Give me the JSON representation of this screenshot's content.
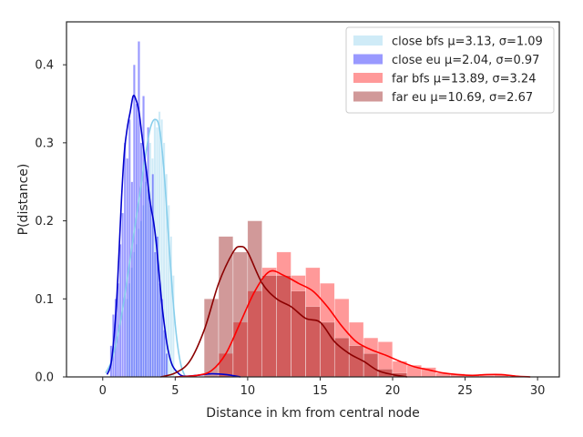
{
  "chart_data": {
    "type": "histogram-kde",
    "title": "",
    "xlabel": "Distance in km from central node",
    "ylabel": "P(distance)",
    "xlim": [
      -2.5,
      31.5
    ],
    "ylim": [
      0,
      0.455
    ],
    "xticks": [
      "0",
      "5",
      "10",
      "15",
      "20",
      "25",
      "30"
    ],
    "xtick_values": [
      0,
      5,
      10,
      15,
      20,
      25,
      30
    ],
    "yticks": [
      "0.0",
      "0.1",
      "0.2",
      "0.3",
      "0.4"
    ],
    "ytick_values": [
      0,
      0.1,
      0.2,
      0.3,
      0.4
    ],
    "grid": false,
    "legend_position": "top-right",
    "series": [
      {
        "name": "close bfs μ=3.13, σ=1.09",
        "bar_color": "#87ceeb",
        "bar_alpha": 0.4,
        "line_color": "#87ceeb",
        "bin_width": 0.16,
        "bins": [
          [
            1.6,
            0.1
          ],
          [
            1.76,
            0.12
          ],
          [
            1.92,
            0.14
          ],
          [
            2.08,
            0.16
          ],
          [
            2.24,
            0.17
          ],
          [
            2.4,
            0.19
          ],
          [
            2.56,
            0.2
          ],
          [
            2.72,
            0.22
          ],
          [
            2.88,
            0.25
          ],
          [
            3.04,
            0.24
          ],
          [
            3.2,
            0.3
          ],
          [
            3.36,
            0.28
          ],
          [
            3.52,
            0.33
          ],
          [
            3.68,
            0.32
          ],
          [
            3.84,
            0.34
          ],
          [
            4.0,
            0.33
          ],
          [
            4.16,
            0.3
          ],
          [
            4.32,
            0.26
          ],
          [
            4.48,
            0.22
          ],
          [
            4.64,
            0.18
          ],
          [
            4.8,
            0.13
          ]
        ],
        "kde": [
          [
            0.2,
            0.005
          ],
          [
            0.6,
            0.02
          ],
          [
            1.0,
            0.05
          ],
          [
            1.4,
            0.09
          ],
          [
            1.8,
            0.14
          ],
          [
            2.2,
            0.19
          ],
          [
            2.6,
            0.24
          ],
          [
            3.0,
            0.29
          ],
          [
            3.3,
            0.32
          ],
          [
            3.6,
            0.33
          ],
          [
            3.9,
            0.32
          ],
          [
            4.2,
            0.27
          ],
          [
            4.5,
            0.19
          ],
          [
            4.8,
            0.11
          ],
          [
            5.1,
            0.05
          ],
          [
            5.4,
            0.015
          ],
          [
            5.7,
            0.0
          ]
        ]
      },
      {
        "name": "close eu μ=2.04, σ=0.97",
        "bar_color": "#0000ff",
        "bar_alpha": 0.4,
        "line_color": "#0000cd",
        "bin_width": 0.16,
        "bins": [
          [
            0.5,
            0.04
          ],
          [
            0.66,
            0.08
          ],
          [
            0.82,
            0.1
          ],
          [
            0.98,
            0.12
          ],
          [
            1.14,
            0.17
          ],
          [
            1.3,
            0.21
          ],
          [
            1.46,
            0.3
          ],
          [
            1.62,
            0.28
          ],
          [
            1.78,
            0.33
          ],
          [
            1.94,
            0.25
          ],
          [
            2.1,
            0.4
          ],
          [
            2.26,
            0.35
          ],
          [
            2.42,
            0.43
          ],
          [
            2.58,
            0.3
          ],
          [
            2.74,
            0.36
          ],
          [
            2.9,
            0.27
          ],
          [
            3.06,
            0.32
          ],
          [
            3.22,
            0.22
          ],
          [
            3.38,
            0.26
          ],
          [
            3.54,
            0.16
          ],
          [
            3.7,
            0.18
          ],
          [
            3.86,
            0.12
          ],
          [
            4.02,
            0.1
          ],
          [
            4.18,
            0.06
          ],
          [
            4.34,
            0.03
          ]
        ],
        "kde": [
          [
            0.3,
            0.003
          ],
          [
            0.6,
            0.02
          ],
          [
            0.9,
            0.08
          ],
          [
            1.1,
            0.15
          ],
          [
            1.3,
            0.23
          ],
          [
            1.5,
            0.29
          ],
          [
            1.7,
            0.32
          ],
          [
            1.9,
            0.34
          ],
          [
            2.1,
            0.36
          ],
          [
            2.3,
            0.355
          ],
          [
            2.5,
            0.34
          ],
          [
            2.7,
            0.31
          ],
          [
            2.9,
            0.28
          ],
          [
            3.1,
            0.25
          ],
          [
            3.3,
            0.22
          ],
          [
            3.5,
            0.2
          ],
          [
            3.7,
            0.17
          ],
          [
            3.9,
            0.13
          ],
          [
            4.1,
            0.09
          ],
          [
            4.3,
            0.06
          ],
          [
            4.5,
            0.035
          ],
          [
            4.8,
            0.015
          ],
          [
            5.2,
            0.005
          ],
          [
            5.6,
            0.001
          ],
          [
            6.5,
            0.002
          ],
          [
            7.5,
            0.004
          ],
          [
            8.5,
            0.003
          ],
          [
            9.5,
            0.0
          ]
        ]
      },
      {
        "name": "far bfs μ=13.89, σ=3.24",
        "bar_color": "#ff0000",
        "bar_alpha": 0.4,
        "line_color": "#ff0000",
        "bin_width": 1.0,
        "bins": [
          [
            8,
            0.03
          ],
          [
            9,
            0.07
          ],
          [
            10,
            0.11
          ],
          [
            11,
            0.14
          ],
          [
            12,
            0.16
          ],
          [
            13,
            0.13
          ],
          [
            14,
            0.14
          ],
          [
            15,
            0.12
          ],
          [
            16,
            0.1
          ],
          [
            17,
            0.07
          ],
          [
            18,
            0.05
          ],
          [
            19,
            0.045
          ],
          [
            20,
            0.02
          ],
          [
            21,
            0.015
          ],
          [
            22,
            0.012
          ],
          [
            23,
            0.005
          ],
          [
            24,
            0.004
          ],
          [
            25,
            0.002
          ],
          [
            26,
            0.002
          ],
          [
            27,
            0.003
          ]
        ],
        "kde": [
          [
            5.0,
            0.0
          ],
          [
            6.5,
            0.002
          ],
          [
            7.5,
            0.008
          ],
          [
            8.5,
            0.03
          ],
          [
            9.5,
            0.07
          ],
          [
            10.5,
            0.11
          ],
          [
            11.5,
            0.135
          ],
          [
            12.5,
            0.13
          ],
          [
            13.5,
            0.12
          ],
          [
            14.5,
            0.11
          ],
          [
            15.5,
            0.09
          ],
          [
            16.5,
            0.065
          ],
          [
            17.5,
            0.045
          ],
          [
            18.5,
            0.035
          ],
          [
            19.5,
            0.028
          ],
          [
            20.5,
            0.02
          ],
          [
            21.5,
            0.013
          ],
          [
            22.5,
            0.009
          ],
          [
            23.5,
            0.005
          ],
          [
            24.5,
            0.003
          ],
          [
            25.5,
            0.002
          ],
          [
            26.5,
            0.003
          ],
          [
            27.5,
            0.003
          ],
          [
            28.5,
            0.001
          ],
          [
            29.5,
            0.0
          ]
        ]
      },
      {
        "name": "far eu μ=10.69, σ=2.67",
        "bar_color": "#8b0000",
        "bar_alpha": 0.4,
        "line_color": "#8b0000",
        "bin_width": 1.0,
        "bins": [
          [
            7,
            0.1
          ],
          [
            8,
            0.18
          ],
          [
            9,
            0.16
          ],
          [
            10,
            0.2
          ],
          [
            11,
            0.13
          ],
          [
            12,
            0.13
          ],
          [
            13,
            0.11
          ],
          [
            14,
            0.09
          ],
          [
            15,
            0.07
          ],
          [
            16,
            0.05
          ],
          [
            17,
            0.04
          ],
          [
            18,
            0.03
          ],
          [
            19,
            0.01
          ],
          [
            20,
            0.005
          ]
        ],
        "kde": [
          [
            4.0,
            0.0
          ],
          [
            5.0,
            0.005
          ],
          [
            6.0,
            0.02
          ],
          [
            7.0,
            0.06
          ],
          [
            8.0,
            0.12
          ],
          [
            9.0,
            0.16
          ],
          [
            9.5,
            0.167
          ],
          [
            10.0,
            0.16
          ],
          [
            11.0,
            0.12
          ],
          [
            12.0,
            0.1
          ],
          [
            13.0,
            0.09
          ],
          [
            14.0,
            0.075
          ],
          [
            15.0,
            0.07
          ],
          [
            16.0,
            0.045
          ],
          [
            17.0,
            0.03
          ],
          [
            18.0,
            0.02
          ],
          [
            19.0,
            0.008
          ],
          [
            20.0,
            0.003
          ],
          [
            21.0,
            0.0
          ]
        ]
      }
    ]
  }
}
